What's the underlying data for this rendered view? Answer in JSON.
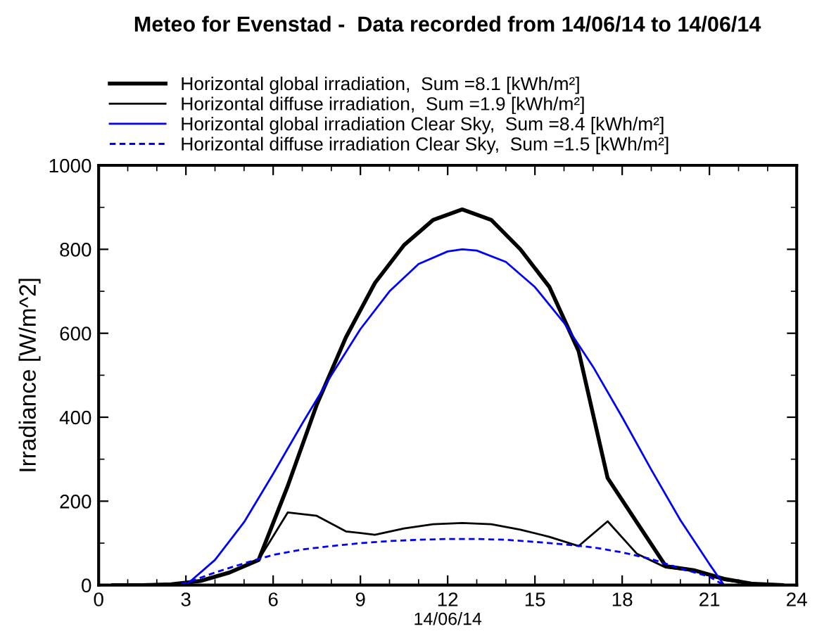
{
  "chart_data": {
    "type": "line",
    "title": "Meteo for Evenstad -  Data recorded from 14/06/14 to 14/06/14",
    "xlabel": "14/06/14",
    "ylabel": "Irradiance [W/m^2]",
    "xlim": [
      0,
      24
    ],
    "xticks": [
      0,
      3,
      6,
      9,
      12,
      15,
      18,
      21,
      24
    ],
    "ylim": [
      0,
      1000
    ],
    "yticks": [
      0,
      200,
      400,
      600,
      800,
      1000
    ],
    "grid": false,
    "legend": "top left",
    "marker": "none",
    "series": [
      {
        "name": "Horizontal global irradiation,  Sum =8.1 [kWh/m²]",
        "color": "#000000",
        "line_style": "solid",
        "x": [
          0.5,
          1.5,
          2.5,
          3.5,
          4.5,
          5.5,
          6.5,
          7.5,
          8.5,
          9.5,
          10.5,
          11.5,
          12.5,
          13.5,
          14.5,
          15.5,
          16.5,
          17.5,
          18.5,
          19.5,
          20.5,
          21.5,
          22.5,
          23.5
        ],
        "values": [
          0,
          0,
          2,
          10,
          30,
          60,
          236,
          430,
          590,
          720,
          810,
          870,
          895,
          870,
          800,
          710,
          558,
          255,
          150,
          45,
          35,
          15,
          3,
          0
        ]
      },
      {
        "name": "Horizontal diffuse irradiation,  Sum =1.9 [kWh/m²]",
        "color": "#000000",
        "line_style": "solid",
        "x": [
          0.5,
          1.5,
          2.5,
          3.5,
          4.5,
          5.5,
          6.5,
          7.5,
          8.5,
          9.5,
          10.5,
          11.5,
          12.5,
          13.5,
          14.5,
          15.5,
          16.5,
          17.5,
          18.5,
          19.5,
          20.5,
          21.5,
          22.5,
          23.5
        ],
        "values": [
          0,
          0,
          2,
          10,
          30,
          60,
          173,
          165,
          128,
          120,
          135,
          145,
          148,
          145,
          132,
          115,
          93,
          152,
          75,
          42,
          33,
          12,
          3,
          0
        ]
      },
      {
        "name": "Horizontal global irradiation Clear Sky,  Sum =8.4 [kWh/m²]",
        "color": "#0000ff",
        "line_style": "solid",
        "x": [
          3,
          4,
          5,
          6,
          7,
          8,
          9,
          10,
          11,
          12,
          12.5,
          13,
          14,
          15,
          16,
          17,
          18,
          19,
          20,
          21,
          21.5
        ],
        "values": [
          0,
          60,
          150,
          265,
          385,
          500,
          610,
          700,
          765,
          795,
          800,
          797,
          770,
          710,
          625,
          520,
          400,
          275,
          155,
          50,
          0
        ]
      },
      {
        "name": "Horizontal diffuse irradiation Clear Sky,  Sum =1.5 [kWh/m²]",
        "color": "#0000ff",
        "line_style": "dashed",
        "x": [
          2.5,
          3,
          4,
          5,
          6,
          7,
          8,
          9,
          10,
          11,
          12,
          13,
          14,
          15,
          16,
          17,
          18,
          19,
          20,
          21,
          21.5
        ],
        "values": [
          0,
          5,
          30,
          52,
          72,
          85,
          93,
          100,
          105,
          108,
          110,
          110,
          108,
          103,
          97,
          90,
          78,
          62,
          40,
          20,
          0
        ]
      }
    ]
  }
}
